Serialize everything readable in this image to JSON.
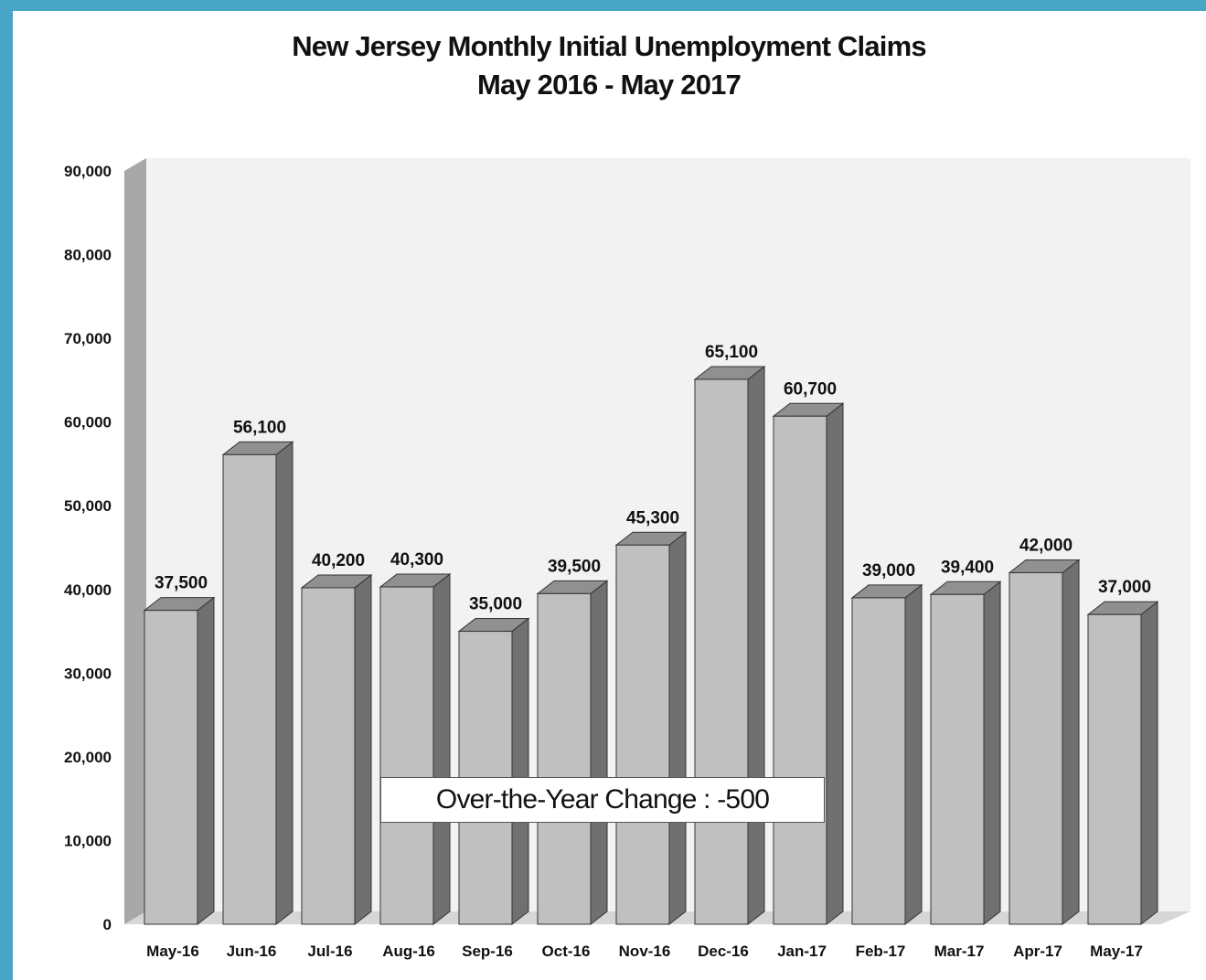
{
  "colors": {
    "frame_border": "#4aa6c6",
    "bar_front": "#c0c0c0",
    "bar_side": "#707070",
    "bar_top": "#909090",
    "plot_wall": "#f2f2f2",
    "axis_wall": "#a8a8a8"
  },
  "chart_data": {
    "type": "bar",
    "title": "New Jersey Monthly Initial Unemployment Claims",
    "subtitle": "May 2016 - May 2017",
    "xlabel": "",
    "ylabel": "",
    "ylim": [
      0,
      90000
    ],
    "yticks": [
      0,
      10000,
      20000,
      30000,
      40000,
      50000,
      60000,
      70000,
      80000,
      90000
    ],
    "ytick_labels": [
      "0",
      "10,000",
      "20,000",
      "30,000",
      "40,000",
      "50,000",
      "60,000",
      "70,000",
      "80,000",
      "90,000"
    ],
    "grid": false,
    "style": "3d",
    "categories": [
      "May-16",
      "Jun-16",
      "Jul-16",
      "Aug-16",
      "Sep-16",
      "Oct-16",
      "Nov-16",
      "Dec-16",
      "Jan-17",
      "Feb-17",
      "Mar-17",
      "Apr-17",
      "May-17"
    ],
    "values": [
      37500,
      56100,
      40200,
      40300,
      35000,
      39500,
      45300,
      65100,
      60700,
      39000,
      39400,
      42000,
      37000
    ],
    "value_labels": [
      "37,500",
      "56,100",
      "40,200",
      "40,300",
      "35,000",
      "39,500",
      "45,300",
      "65,100",
      "60,700",
      "39,000",
      "39,400",
      "42,000",
      "37,000"
    ],
    "annotation": "Over-the-Year Change : -500"
  }
}
